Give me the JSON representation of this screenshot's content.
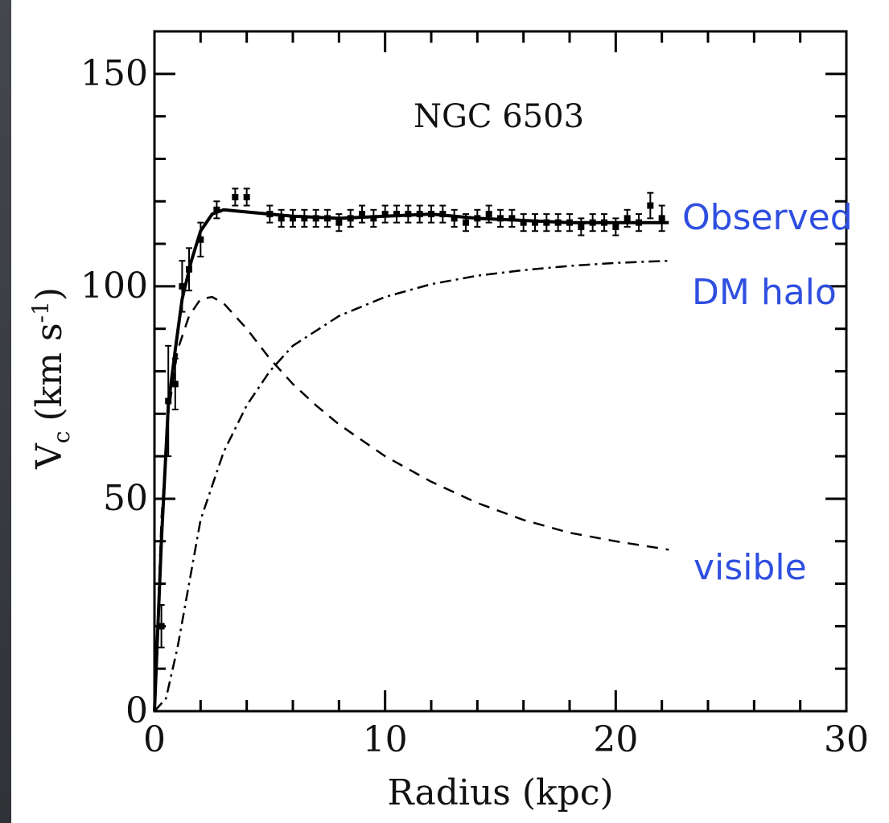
{
  "chart_data": {
    "type": "line",
    "title": "NGC 6503",
    "xlabel": "Radius (kpc)",
    "ylabel": "V",
    "ylabel_sub": "c",
    "ylabel_unit": "(km s",
    "ylabel_sup": "-1",
    "ylabel_close": ")",
    "xlim": [
      0,
      30
    ],
    "ylim": [
      0,
      160
    ],
    "xticks": [
      "0",
      "10",
      "20",
      "30"
    ],
    "yticks": [
      "0",
      "50",
      "100",
      "150"
    ],
    "grid": false,
    "annotations": [
      "Observed",
      "DM halo",
      "visible"
    ],
    "series": [
      {
        "style": "solid",
        "x": [
          0,
          0.3,
          0.6,
          0.9,
          1.2,
          1.6,
          2.0,
          2.5,
          3.0,
          4.0,
          5,
          6,
          8,
          10,
          12,
          14,
          16,
          18,
          20,
          22.3
        ],
        "y": [
          0,
          40,
          72,
          85,
          97,
          106,
          113,
          117,
          118,
          117.5,
          117,
          116.5,
          116,
          116.5,
          117,
          116,
          115.5,
          115,
          115,
          115
        ]
      },
      {
        "style": "dashed",
        "x": [
          0,
          0.3,
          0.6,
          1.0,
          1.5,
          2.0,
          2.5,
          3.0,
          4.0,
          5,
          6,
          7,
          8,
          10,
          12,
          14,
          16,
          18,
          20,
          22.3
        ],
        "y": [
          0,
          45,
          70,
          85,
          93,
          97,
          97.5,
          96,
          90,
          83,
          77,
          72,
          67.5,
          60,
          54,
          49,
          45,
          42,
          40,
          38
        ]
      },
      {
        "style": "dashdot",
        "x": [
          0,
          0.5,
          1,
          1.5,
          2,
          3,
          4,
          5,
          6,
          8,
          10,
          12,
          14,
          16,
          18,
          20,
          22.3
        ],
        "y": [
          0,
          3,
          15,
          30,
          45,
          61,
          72,
          80,
          86,
          93,
          97.5,
          100.5,
          102.5,
          103.8,
          104.8,
          105.5,
          106
        ]
      }
    ],
    "observed_points": {
      "x": [
        0.3,
        0.6,
        0.9,
        1.2,
        1.5,
        2.0,
        2.7,
        3.5,
        4.0,
        5.0,
        5.5,
        6.0,
        6.5,
        7.0,
        7.5,
        8.0,
        8.5,
        9.0,
        9.5,
        10.0,
        10.5,
        11.0,
        11.5,
        12.0,
        12.5,
        13.0,
        13.5,
        14.0,
        14.5,
        15.0,
        15.5,
        16.0,
        16.5,
        17.0,
        17.5,
        18.0,
        18.5,
        19.0,
        19.5,
        20.0,
        20.5,
        21.0,
        21.5,
        22.0
      ],
      "y": [
        20,
        73,
        77,
        100,
        104,
        111,
        118,
        121,
        121,
        117,
        116,
        116,
        116,
        116,
        116,
        115,
        116,
        117,
        116,
        117,
        117,
        117,
        117,
        117,
        117,
        116,
        115,
        116,
        117,
        116,
        116,
        115,
        115,
        115,
        115,
        115,
        114,
        115,
        115,
        114,
        116,
        115,
        119,
        116
      ],
      "err": [
        5,
        13,
        6,
        6,
        5,
        4,
        2,
        2,
        2,
        2,
        2,
        2,
        2,
        2,
        2,
        2,
        2,
        2,
        2,
        2,
        2,
        2,
        2,
        2,
        2,
        2,
        2,
        2,
        2,
        2,
        2,
        2,
        2,
        2,
        2,
        2,
        2,
        2,
        2,
        2,
        2,
        2,
        3,
        3
      ]
    }
  }
}
